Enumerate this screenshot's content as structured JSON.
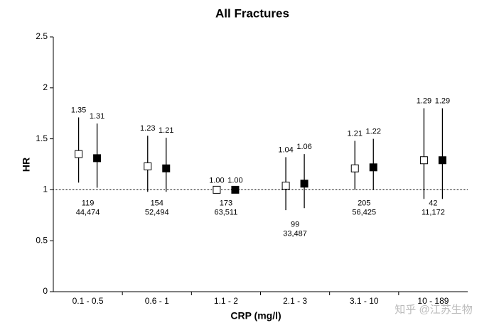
{
  "chart_data": {
    "type": "errorbar",
    "title": "All Fractures",
    "x_label": "CRP (mg/l)",
    "y_label": "HR",
    "categories": [
      "0.1 - 0.5",
      "0.6 - 1",
      "1.1 - 2",
      "2.1 - 3",
      "3.1 - 10",
      "10 - 189"
    ],
    "series": [
      {
        "marker": "open",
        "color": "#000000",
        "values": [
          1.35,
          1.23,
          1.0,
          1.04,
          1.21,
          1.29
        ],
        "value_labels": [
          "1.35",
          "1.23",
          "1.00",
          "1.04",
          "1.21",
          "1.29"
        ],
        "ci_low": [
          1.07,
          0.98,
          0.98,
          0.8,
          1.0,
          0.91
        ],
        "ci_high": [
          1.71,
          1.53,
          1.02,
          1.32,
          1.48,
          1.8
        ]
      },
      {
        "marker": "filled",
        "color": "#000000",
        "values": [
          1.31,
          1.21,
          1.0,
          1.06,
          1.22,
          1.29
        ],
        "value_labels": [
          "1.31",
          "1.21",
          "1.00",
          "1.06",
          "1.22",
          "1.29"
        ],
        "ci_low": [
          1.02,
          0.98,
          0.98,
          0.82,
          1.0,
          0.91
        ],
        "ci_high": [
          1.65,
          1.51,
          1.02,
          1.35,
          1.5,
          1.8
        ]
      }
    ],
    "annotations": [
      [
        "119",
        "44,474"
      ],
      [
        "154",
        "52,494"
      ],
      [
        "173",
        "63,511"
      ],
      [
        "99",
        "33,487"
      ],
      [
        "205",
        "56,425"
      ],
      [
        "42",
        "11,172"
      ]
    ],
    "reference_line": 1,
    "ylim": [
      0,
      2.5
    ],
    "yticks": [
      0,
      0.5,
      1,
      1.5,
      2,
      2.5
    ],
    "watermark": "知乎 @江苏生物"
  }
}
